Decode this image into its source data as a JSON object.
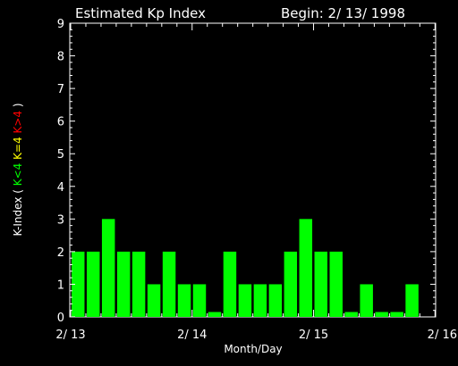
{
  "chart_data": {
    "type": "bar",
    "title": "Estimated Kp Index",
    "subtitle": "Begin: 2/ 13/ 1998",
    "xlabel": "Month/Day",
    "ylabel_parts": [
      {
        "text": "K-Index (",
        "color": "#ffffff"
      },
      {
        "text": "K<4",
        "color": "#00ff00"
      },
      {
        "text": "K=4",
        "color": "#ffff00"
      },
      {
        "text": "K>4",
        "color": "#ff0000"
      },
      {
        "text": ")",
        "color": "#ffffff"
      }
    ],
    "ylim": [
      0,
      9
    ],
    "yticks": [
      "0",
      "1",
      "2",
      "3",
      "4",
      "5",
      "6",
      "7",
      "8",
      "9"
    ],
    "xtick_labels": [
      "2/ 13",
      "2/ 14",
      "2/ 15",
      "2/ 16"
    ],
    "values": [
      2,
      2,
      3,
      2,
      2,
      1,
      2,
      1,
      1,
      0.15,
      2,
      1,
      1,
      1,
      2,
      3,
      2,
      2,
      0.15,
      1,
      0.15,
      0.15,
      1
    ],
    "colors": {
      "low": "#00ff00",
      "mid": "#ffff00",
      "high": "#ff0000",
      "axes": "#ffffff",
      "background": "#000000"
    }
  }
}
